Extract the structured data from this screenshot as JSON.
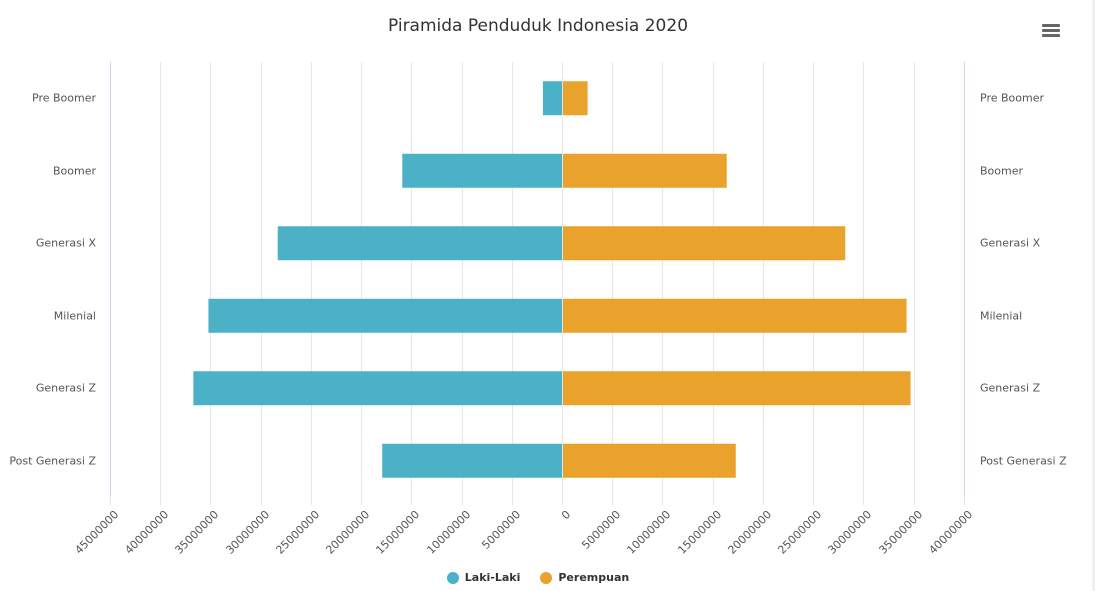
{
  "title": "Piramida Penduduk Indonesia 2020",
  "menu": {
    "icon": "hamburger-menu-icon"
  },
  "colors": {
    "male": "#4bb1c6",
    "female": "#e9a22b",
    "grid": "#e6e6e6",
    "axis": "#ccd6eb"
  },
  "legend": [
    {
      "label": "Laki-Laki",
      "color": "#4bb1c6"
    },
    {
      "label": "Perempuan",
      "color": "#e9a22b"
    }
  ],
  "x_ticks_left": [
    "45000000",
    "40000000",
    "35000000",
    "30000000",
    "25000000",
    "20000000",
    "15000000",
    "10000000",
    "5000000"
  ],
  "x_ticks_right": [
    "0",
    "5000000",
    "10000000",
    "15000000",
    "20000000",
    "25000000",
    "30000000",
    "35000000",
    "40000000"
  ],
  "chart_data": {
    "type": "bar",
    "orientation": "horizontal",
    "subtype": "population-pyramid",
    "title": "Piramida Penduduk Indonesia 2020",
    "categories": [
      "Pre Boomer",
      "Boomer",
      "Generasi X",
      "Milenial",
      "Generasi Z",
      "Post Generasi Z"
    ],
    "series": [
      {
        "name": "Laki-Laki",
        "color": "#4bb1c6",
        "side": "left",
        "values": [
          1900000,
          15900000,
          28300000,
          35200000,
          36700000,
          17900000
        ]
      },
      {
        "name": "Perempuan",
        "color": "#e9a22b",
        "side": "right",
        "values": [
          2550000,
          16400000,
          28200000,
          34300000,
          34700000,
          17300000
        ]
      }
    ],
    "xlabel": "",
    "ylabel": "",
    "xlim": [
      -45000000,
      40000000
    ],
    "tick_interval": 5000000,
    "grid": true,
    "legend_position": "bottom"
  }
}
